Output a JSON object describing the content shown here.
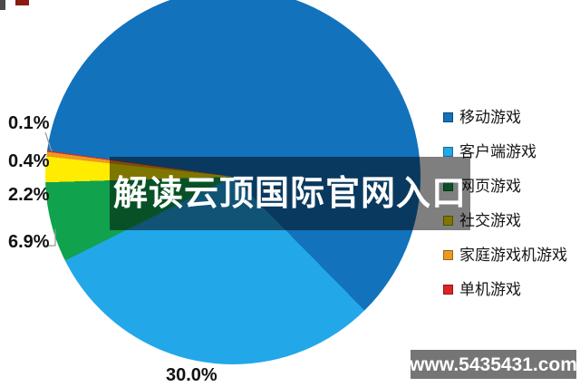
{
  "chart_data": {
    "type": "pie",
    "title": "",
    "legend_position": "right",
    "start_angle_deg": 278,
    "slices": [
      {
        "label": "移动游戏",
        "value": 60.4,
        "color": "#1272BC",
        "data_label": ""
      },
      {
        "label": "客户端游戏",
        "value": 30.0,
        "color": "#22A7E9",
        "data_label": "30.0%"
      },
      {
        "label": "网页游戏",
        "value": 6.9,
        "color": "#11A24E",
        "data_label": "6.9%"
      },
      {
        "label": "社交游戏",
        "value": 2.2,
        "color": "#FFEC00",
        "data_label": "2.2%"
      },
      {
        "label": "家庭游戏机游戏",
        "value": 0.4,
        "color": "#EC9A22",
        "data_label": "0.4%"
      },
      {
        "label": "单机游戏",
        "value": 0.1,
        "color": "#DF2322",
        "data_label": "0.1%"
      }
    ],
    "leader_line_color": "#9a9a9a"
  },
  "overlay": {
    "text": "解读云顶国际官网入口",
    "text_color": "#ffffff"
  },
  "watermark": {
    "text": "www.5435431.com"
  }
}
